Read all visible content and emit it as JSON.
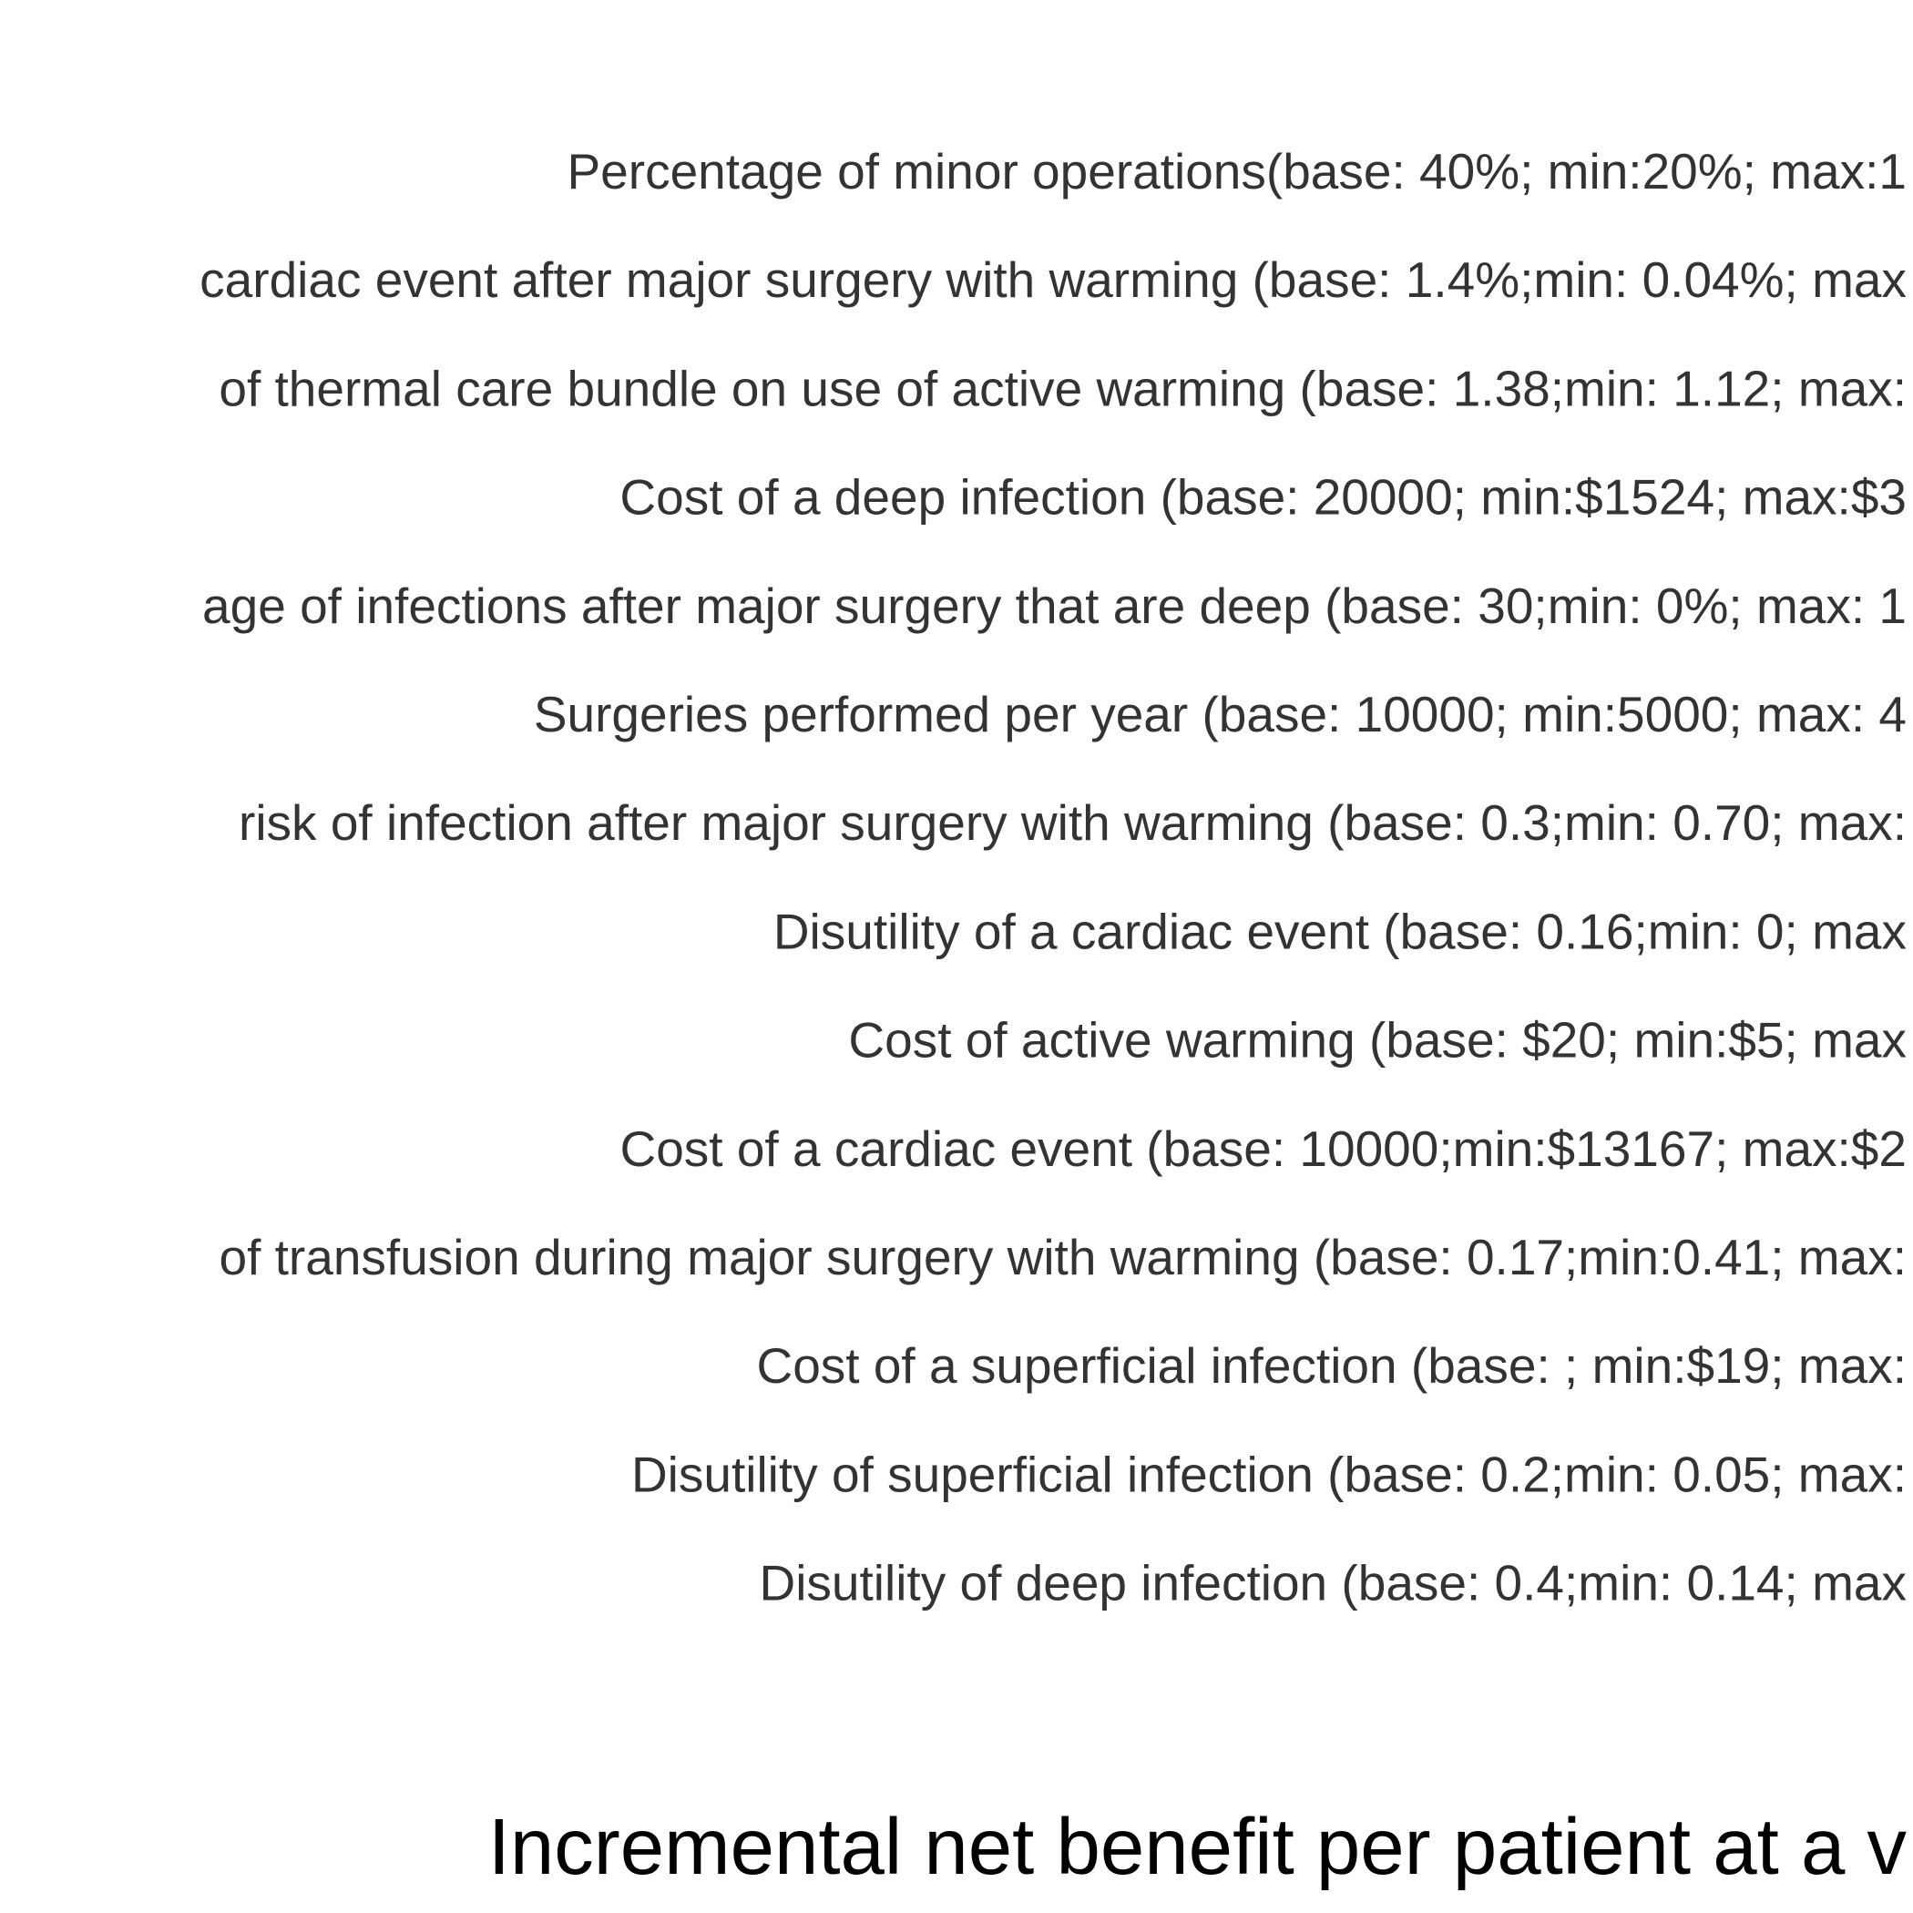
{
  "chart_data": {
    "type": "bar",
    "orientation": "horizontal",
    "categories": [
      "Percentage of minor operations(base: 40%; min:20%; max:1",
      "cardiac event after major surgery with warming (base: 1.4%;min: 0.04%; max",
      "of thermal care bundle on use of active warming (base: 1.38;min: 1.12; max:",
      "Cost of a deep infection (base: 20000; min:$1524; max:$3",
      "age of infections after major surgery that are deep (base: 30;min: 0%; max: 1",
      "Surgeries performed per year (base: 10000; min:5000; max: 4",
      "risk of infection after major surgery with warming (base: 0.3;min: 0.70; max:",
      "Disutility of a cardiac event (base: 0.16;min: 0; max",
      "Cost of active warming (base: $20; min:$5; max",
      "Cost of a cardiac event (base: 10000;min:$13167; max:$2",
      "of transfusion during major surgery with warming  (base: 0.17;min:0.41; max:",
      "Cost of a superficial infection (base: ; min:$19; max:",
      "Disutility of superficial infection (base: 0.2;min: 0.05; max:",
      "Disutility of deep infection (base: 0.4;min: 0.14; max"
    ],
    "title": "",
    "xlabel": "Incremental net benefit per patient at a v",
    "ylabel": "",
    "grid": false,
    "legend": "none",
    "colors": {
      "tick_label": "#333333",
      "axis_title": "#000000",
      "background": "#ffffff"
    }
  }
}
